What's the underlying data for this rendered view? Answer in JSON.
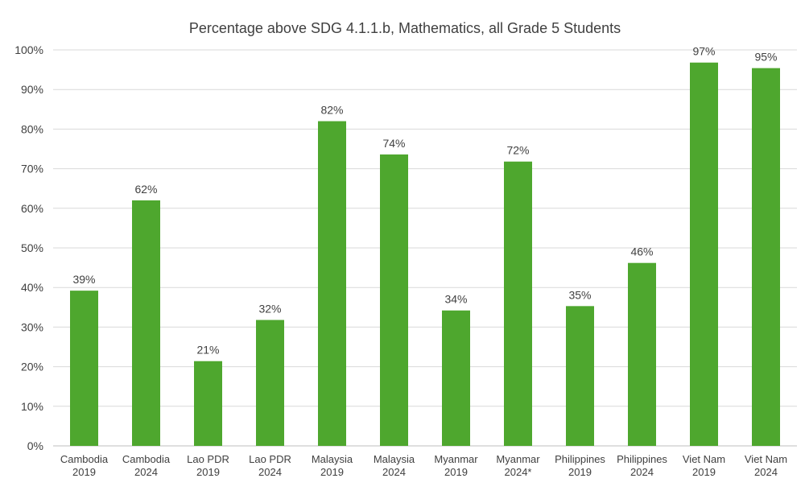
{
  "chart_data": {
    "type": "bar",
    "title": "Percentage above SDG 4.1.1.b, Mathematics, all Grade 5 Students",
    "xlabel": "",
    "ylabel": "",
    "ylim": [
      0,
      100
    ],
    "y_ticks": [
      "0%",
      "10%",
      "20%",
      "30%",
      "40%",
      "50%",
      "60%",
      "70%",
      "80%",
      "90%",
      "100%"
    ],
    "grid": true,
    "legend": "none",
    "bar_color": "#4ea72e",
    "categories": [
      [
        "Cambodia",
        "2019"
      ],
      [
        "Cambodia",
        "2024"
      ],
      [
        "Lao PDR",
        "2019"
      ],
      [
        "Lao PDR",
        "2024"
      ],
      [
        "Malaysia",
        "2019"
      ],
      [
        "Malaysia",
        "2024"
      ],
      [
        "Myanmar",
        "2019"
      ],
      [
        "Myanmar",
        "2024*"
      ],
      [
        "Philippines",
        "2019"
      ],
      [
        "Philippines",
        "2024"
      ],
      [
        "Viet Nam",
        "2019"
      ],
      [
        "Viet Nam",
        "2024"
      ]
    ],
    "values": [
      39.2,
      62.0,
      21.4,
      31.8,
      82.0,
      73.6,
      34.2,
      71.8,
      35.3,
      46.2,
      96.8,
      95.4
    ],
    "labels": [
      "39%",
      "62%",
      "21%",
      "32%",
      "82%",
      "74%",
      "34%",
      "72%",
      "35%",
      "46%",
      "97%",
      "95%"
    ]
  }
}
